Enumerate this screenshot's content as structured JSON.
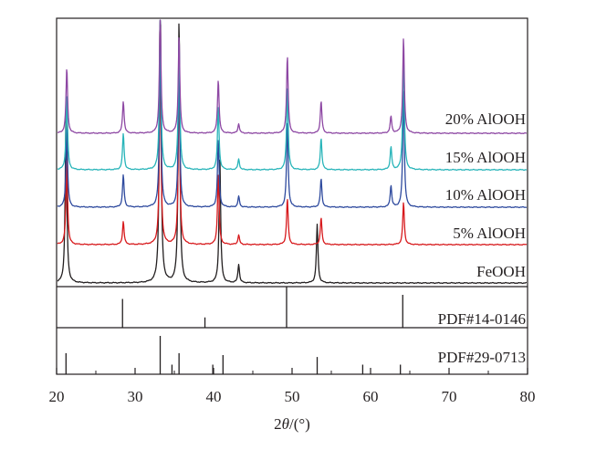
{
  "chart_data": {
    "type": "line",
    "xlabel": "2θ/(°)",
    "xlabel_prefix": "2",
    "xlabel_var": "θ",
    "xlabel_suffix": "/(°)",
    "xlim": [
      20,
      80
    ],
    "x_ticks": [
      20,
      30,
      40,
      50,
      60,
      70,
      80
    ],
    "y_axis_shown": false,
    "grid": false,
    "series": [
      {
        "name": "FeOOH",
        "color": "#231f20",
        "peaks": [
          [
            21.2,
            0.65
          ],
          [
            33.2,
            1.18
          ],
          [
            35.6,
            1.0
          ],
          [
            40.8,
            0.47
          ],
          [
            43.2,
            0.07
          ],
          [
            53.2,
            0.22
          ]
        ]
      },
      {
        "name": "5% AlOOH",
        "color": "#d7191c",
        "peaks": [
          [
            21.3,
            0.45
          ],
          [
            28.5,
            0.12
          ],
          [
            33.2,
            1.0
          ],
          [
            35.6,
            0.88
          ],
          [
            40.6,
            0.37
          ],
          [
            43.2,
            0.05
          ],
          [
            49.4,
            0.24
          ],
          [
            53.7,
            0.14
          ],
          [
            64.2,
            0.22
          ]
        ]
      },
      {
        "name": "10% AlOOH",
        "color": "#2e4a9e",
        "peaks": [
          [
            21.3,
            0.45
          ],
          [
            28.5,
            0.18
          ],
          [
            33.2,
            0.95
          ],
          [
            35.6,
            0.8
          ],
          [
            40.6,
            0.38
          ],
          [
            43.2,
            0.06
          ],
          [
            49.4,
            0.48
          ],
          [
            53.7,
            0.16
          ],
          [
            62.6,
            0.12
          ],
          [
            64.2,
            0.66
          ]
        ]
      },
      {
        "name": "15% AlOOH",
        "color": "#27b4b9",
        "peaks": [
          [
            21.3,
            0.5
          ],
          [
            28.5,
            0.24
          ],
          [
            33.2,
            1.0
          ],
          [
            35.6,
            0.85
          ],
          [
            40.6,
            0.42
          ],
          [
            43.2,
            0.07
          ],
          [
            49.4,
            0.55
          ],
          [
            53.7,
            0.21
          ],
          [
            62.6,
            0.15
          ],
          [
            64.2,
            0.77
          ]
        ]
      },
      {
        "name": "20% AlOOH",
        "color": "#8d47a3",
        "peaks": [
          [
            21.3,
            0.55
          ],
          [
            28.5,
            0.27
          ],
          [
            33.2,
            1.0
          ],
          [
            35.6,
            0.82
          ],
          [
            40.6,
            0.45
          ],
          [
            43.2,
            0.08
          ],
          [
            49.4,
            0.65
          ],
          [
            53.7,
            0.27
          ],
          [
            62.6,
            0.14
          ],
          [
            64.2,
            0.8
          ]
        ]
      }
    ],
    "reference_patterns": [
      {
        "label": "PDF#14-0146",
        "lines": [
          [
            28.4,
            0.7
          ],
          [
            38.9,
            0.25
          ],
          [
            49.3,
            1.0
          ],
          [
            64.1,
            0.8
          ]
        ]
      },
      {
        "label": "PDF#29-0713",
        "lines": [
          [
            21.2,
            0.55
          ],
          [
            33.2,
            1.0
          ],
          [
            34.7,
            0.25
          ],
          [
            35.6,
            0.55
          ],
          [
            39.9,
            0.25
          ],
          [
            41.2,
            0.5
          ],
          [
            53.2,
            0.45
          ],
          [
            59.0,
            0.25
          ],
          [
            63.8,
            0.25
          ]
        ]
      }
    ]
  }
}
